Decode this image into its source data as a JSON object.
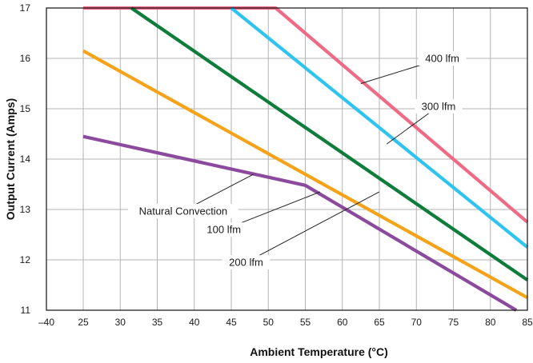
{
  "chart_data": {
    "type": "line",
    "title": "",
    "xlabel": "Ambient Temperature (°C)",
    "ylabel": "Output Current (Amps)",
    "xlim": [
      -40,
      85
    ],
    "ylim": [
      11,
      17
    ],
    "x_ticks": [
      "–40",
      "25",
      "30",
      "35",
      "40",
      "45",
      "50",
      "55",
      "60",
      "65",
      "70",
      "75",
      "80",
      "85"
    ],
    "x_tick_values": [
      -40,
      25,
      30,
      35,
      40,
      45,
      50,
      55,
      60,
      65,
      70,
      75,
      80,
      85
    ],
    "x_axis_note": "axis is broken between –40 and 25",
    "y_ticks": [
      "11",
      "12",
      "13",
      "14",
      "15",
      "16",
      "17"
    ],
    "y_tick_values": [
      11,
      12,
      13,
      14,
      15,
      16,
      17
    ],
    "grid": true,
    "legend": "callout labels with leader lines",
    "series": [
      {
        "name": "400 lfm",
        "color": "#ee6a85",
        "points": [
          [
            25,
            17.0
          ],
          [
            51,
            17.0
          ],
          [
            85,
            12.75
          ]
        ]
      },
      {
        "name": "300 lfm",
        "color": "#2ec4ef",
        "points": [
          [
            45,
            17.0
          ],
          [
            85,
            12.25
          ]
        ]
      },
      {
        "name": "200 lfm",
        "color": "#0e7c3a",
        "points": [
          [
            31.5,
            17.0
          ],
          [
            85,
            11.6
          ]
        ]
      },
      {
        "name": "100 lfm",
        "color": "#f5a31a",
        "points": [
          [
            25,
            16.15
          ],
          [
            85,
            11.25
          ]
        ]
      },
      {
        "name": "Natural Convection",
        "color": "#8c4a9e",
        "points": [
          [
            25,
            14.45
          ],
          [
            55,
            13.48
          ],
          [
            83.5,
            11.0
          ]
        ]
      }
    ],
    "annotations": [
      {
        "text": "400 lfm",
        "label_at": [
          73.5,
          16.0
        ],
        "points_to": [
          62.5,
          15.5
        ]
      },
      {
        "text": "300 lfm",
        "label_at": [
          73,
          15.05
        ],
        "points_to": [
          66,
          14.3
        ]
      },
      {
        "text": "200 lfm",
        "label_at": [
          47,
          11.95
        ],
        "points_to": [
          65,
          13.35
        ]
      },
      {
        "text": "100 lfm",
        "label_at": [
          44,
          12.6
        ],
        "points_to": [
          57,
          13.35
        ]
      },
      {
        "text": "Natural Convection",
        "label_at": [
          38.5,
          12.97
        ],
        "points_to": [
          48,
          13.7
        ]
      }
    ]
  }
}
